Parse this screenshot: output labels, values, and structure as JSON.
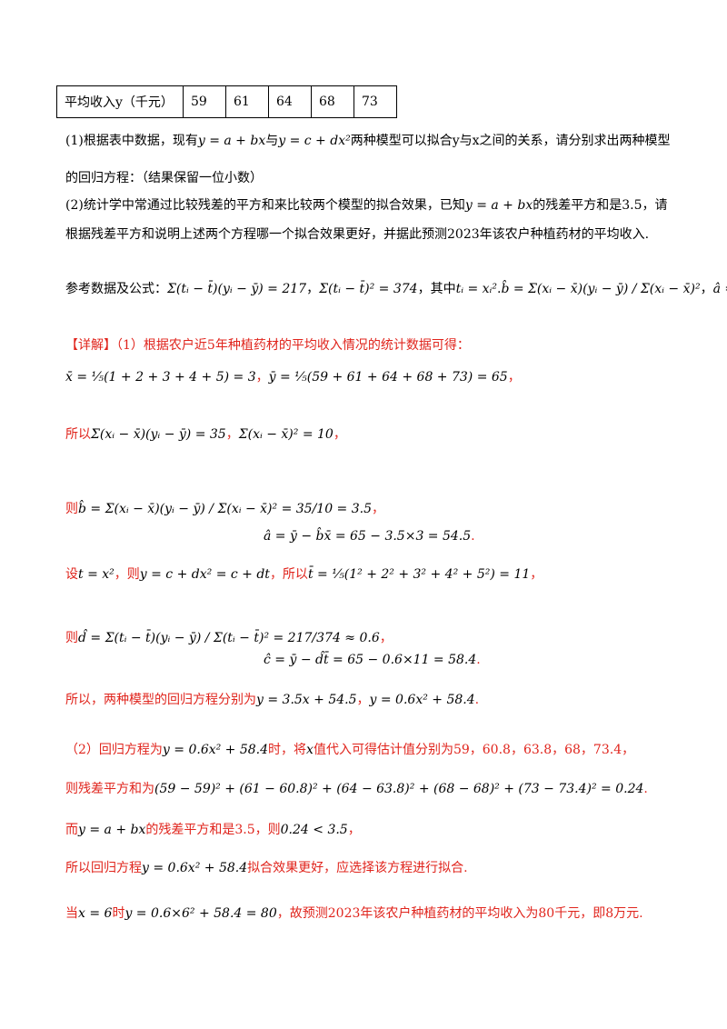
{
  "table": {
    "rows": [
      [
        "平均收入y（千元）",
        "59",
        "61",
        "64",
        "68",
        "73"
      ]
    ]
  },
  "problem": [
    [
      "(1)根据表中数据，现有",
      "y = a + bx",
      "与",
      "y = c + dx²",
      "两种模型可以拟合y与x之间的关系，请分别求出两种模型"
    ],
    [
      "的回归方程：（结果保留一位小数）"
    ],
    [
      "(2)统计学中常通过比较残差的平方和来比较两个模型的拟合效果，已知",
      "y = a + bx",
      "的残差平方和是3.5，请"
    ],
    [
      "根据残差平方和说明上述两个方程哪一个拟合效果更好，并据此预测2023年该农户种植药材的平均收入."
    ],
    [
      "参考数据及公式：",
      "Σ(tᵢ − t̄)(yᵢ − ȳ) = 217",
      "，",
      "Σ(tᵢ − t̄)² = 374",
      "，其中",
      "tᵢ = xᵢ²",
      ".",
      "b̂ = Σ(xᵢ − x̄)(yᵢ − ȳ) / Σ(xᵢ − x̄)²",
      "，",
      "â = ȳ − b̂x̄",
      "."
    ]
  ],
  "solution": [
    [
      "【详解】（1）根据农户近5年种植药材的平均收入情况的统计数据可得："
    ],
    [
      "x̄ = ⅕(1 + 2 + 3 + 4 + 5) = 3",
      "，",
      "ȳ = ⅕(59 + 61 + 64 + 68 + 73) = 65",
      "，"
    ],
    [
      "所以",
      "Σ(xᵢ − x̄)(yᵢ − ȳ) = 35",
      "，",
      "Σ(xᵢ − x̄)² = 10",
      "，"
    ],
    [
      "则",
      "b̂ = Σ(xᵢ − x̄)(yᵢ − ȳ) / Σ(xᵢ − x̄)² = 35/10 = 3.5",
      "，"
    ],
    [
      "â = ȳ − b̂x̄ = 65 − 3.5×3 = 54.5",
      "."
    ],
    [
      "设",
      "t = x²",
      "，则",
      "y = c + dx² = c + dt",
      "，所以",
      "t̄ = ⅕(1² + 2² + 3² + 4² + 5²) = 11",
      "，"
    ],
    [
      "则",
      "d̂ = Σ(tᵢ − t̄)(yᵢ − ȳ) / Σ(tᵢ − t̄)² = 217/374 ≈ 0.6",
      "，"
    ],
    [
      "ĉ = ȳ − d̂t̄ = 65 − 0.6×11 = 58.4",
      "."
    ],
    [
      "所以，两种模型的回归方程分别为",
      "y = 3.5x + 54.5",
      "，",
      "y = 0.6x² + 58.4",
      "."
    ],
    [
      "（2）回归方程为",
      "y = 0.6x² + 58.4",
      "时，将",
      "x",
      "值代入可得估计值分别为59，60.8，63.8，68，73.4，"
    ],
    [
      "则残差平方和为",
      "(59 − 59)² + (61 − 60.8)² + (64 − 63.8)² + (68 − 68)² + (73 − 73.4)² = 0.24",
      "."
    ],
    [
      "而",
      "y = a + bx",
      "的残差平方和是3.5，则",
      "0.24 < 3.5",
      "，"
    ],
    [
      "所以回归方程",
      "y = 0.6x² + 58.4",
      "拟合效果更好，应选择该方程进行拟合."
    ],
    [
      "当",
      "x = 6",
      "时",
      "y = 0.6×6² + 58.4 = 80",
      "，故预测2023年该农户种植药材的平均收入为80千元，即8万元."
    ]
  ]
}
